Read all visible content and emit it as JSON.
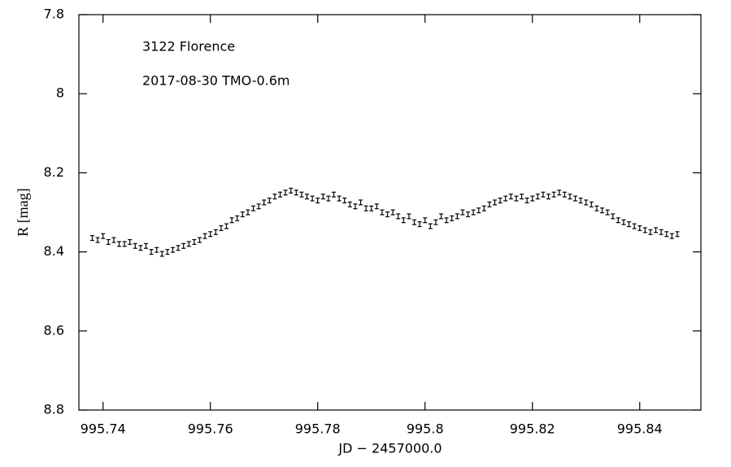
{
  "chart_data": {
    "type": "errorbar",
    "annotations": [
      "3122 Florence",
      "2017-08-30 TMO-0.6m"
    ],
    "xlabel": "JD − 2457000.0",
    "ylabel": "R [mag]",
    "xlim": [
      995.7355,
      995.8514
    ],
    "ylim": [
      7.8,
      8.8
    ],
    "y_inverted": true,
    "xticks": [
      995.74,
      995.76,
      995.78,
      995.8,
      995.82,
      995.84
    ],
    "yticks": [
      7.8,
      8,
      8.2,
      8.4,
      8.6,
      8.8
    ],
    "color": "#000000",
    "yerr": 0.006,
    "x": [
      995.738,
      995.739,
      995.74,
      995.741,
      995.742,
      995.743,
      995.744,
      995.745,
      995.746,
      995.747,
      995.748,
      995.749,
      995.75,
      995.751,
      995.752,
      995.753,
      995.754,
      995.755,
      995.756,
      995.757,
      995.758,
      995.759,
      995.76,
      995.761,
      995.762,
      995.763,
      995.764,
      995.765,
      995.766,
      995.767,
      995.768,
      995.769,
      995.77,
      995.771,
      995.772,
      995.773,
      995.774,
      995.775,
      995.776,
      995.777,
      995.778,
      995.779,
      995.78,
      995.781,
      995.782,
      995.783,
      995.784,
      995.785,
      995.786,
      995.787,
      995.788,
      995.789,
      995.79,
      995.791,
      995.792,
      995.793,
      995.794,
      995.795,
      995.796,
      995.797,
      995.798,
      995.799,
      995.8,
      995.801,
      995.802,
      995.803,
      995.804,
      995.805,
      995.806,
      995.807,
      995.808,
      995.809,
      995.81,
      995.811,
      995.812,
      995.813,
      995.814,
      995.815,
      995.816,
      995.817,
      995.818,
      995.819,
      995.82,
      995.821,
      995.822,
      995.823,
      995.824,
      995.825,
      995.826,
      995.827,
      995.828,
      995.829,
      995.83,
      995.831,
      995.832,
      995.833,
      995.834,
      995.835,
      995.836,
      995.837,
      995.838,
      995.839,
      995.84,
      995.841,
      995.842,
      995.843,
      995.844,
      995.845,
      995.846,
      995.847
    ],
    "values": [
      8.365,
      8.37,
      8.36,
      8.375,
      8.37,
      8.38,
      8.38,
      8.375,
      8.385,
      8.39,
      8.385,
      8.4,
      8.395,
      8.405,
      8.4,
      8.395,
      8.39,
      8.385,
      8.38,
      8.375,
      8.37,
      8.36,
      8.355,
      8.35,
      8.34,
      8.335,
      8.32,
      8.315,
      8.305,
      8.3,
      8.29,
      8.285,
      8.275,
      8.27,
      8.26,
      8.255,
      8.25,
      8.245,
      8.25,
      8.255,
      8.26,
      8.265,
      8.27,
      8.26,
      8.265,
      8.255,
      8.265,
      8.27,
      8.28,
      8.285,
      8.275,
      8.29,
      8.29,
      8.285,
      8.3,
      8.305,
      8.3,
      8.31,
      8.32,
      8.31,
      8.325,
      8.33,
      8.32,
      8.335,
      8.325,
      8.31,
      8.32,
      8.315,
      8.31,
      8.3,
      8.305,
      8.3,
      8.295,
      8.29,
      8.28,
      8.275,
      8.27,
      8.265,
      8.26,
      8.265,
      8.26,
      8.27,
      8.265,
      8.26,
      8.255,
      8.26,
      8.255,
      8.25,
      8.255,
      8.26,
      8.265,
      8.27,
      8.275,
      8.28,
      8.29,
      8.295,
      8.3,
      8.31,
      8.32,
      8.325,
      8.33,
      8.335,
      8.34,
      8.345,
      8.35,
      8.345,
      8.35,
      8.355,
      8.36,
      8.355
    ]
  }
}
